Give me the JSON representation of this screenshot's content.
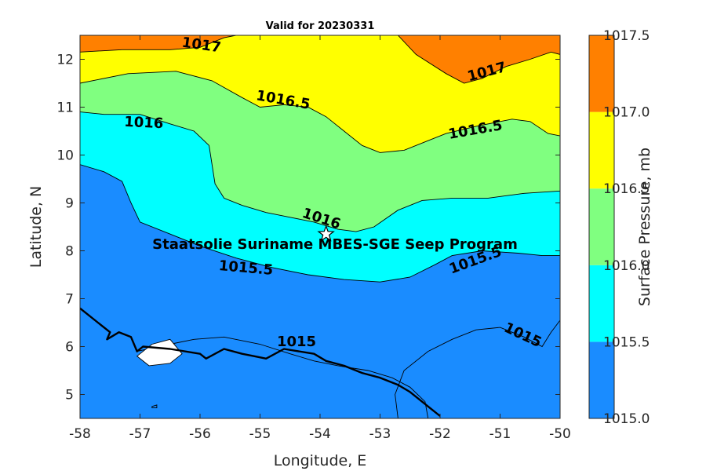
{
  "title": "Valid for 20230331",
  "xlabel": "Longitude, E",
  "ylabel": "Latitude, N",
  "colorbar": {
    "label": "Surface Pressure, mb",
    "range": [
      1015.0,
      1017.5
    ],
    "ticks": [
      "1015.0",
      "1015.5",
      "1016.0",
      "1016.5",
      "1017.0",
      "1017.5"
    ],
    "bands": [
      {
        "from": 1015.0,
        "to": 1015.5,
        "color": "#1a8cff"
      },
      {
        "from": 1015.5,
        "to": 1016.0,
        "color": "#00ffff"
      },
      {
        "from": 1016.0,
        "to": 1016.5,
        "color": "#80ff80"
      },
      {
        "from": 1016.5,
        "to": 1017.0,
        "color": "#ffff00"
      },
      {
        "from": 1017.0,
        "to": 1017.5,
        "color": "#ff8000"
      }
    ]
  },
  "annotation": "Staatsolie Suriname MBES-SGE Seep Program",
  "site_marker": {
    "lon": -53.9,
    "lat": 8.35,
    "shape": "star"
  },
  "chart_data": {
    "type": "heatmap",
    "xlim": [
      -58,
      -50
    ],
    "ylim": [
      4.5,
      12.5
    ],
    "xticks": [
      "-58",
      "-57",
      "-56",
      "-55",
      "-54",
      "-53",
      "-52",
      "-51",
      "-50"
    ],
    "yticks": [
      "5",
      "6",
      "7",
      "8",
      "9",
      "10",
      "11",
      "12"
    ],
    "contour_labels": [
      "1017",
      "1017",
      "1016.5",
      "1016.5",
      "1016",
      "1016",
      "1015.5",
      "1015.5",
      "1015",
      "1015"
    ],
    "contours": [
      {
        "level": 1017.0,
        "points": [
          [
            -58,
            12.15
          ],
          [
            -57.3,
            12.2
          ],
          [
            -56.5,
            12.2
          ],
          [
            -56,
            12.25
          ],
          [
            -55.6,
            12.45
          ],
          [
            -55.4,
            12.5
          ]
        ],
        "closed": false
      },
      {
        "level": 1017.0,
        "points": [
          [
            -52.7,
            12.5
          ],
          [
            -52.4,
            12.1
          ],
          [
            -51.9,
            11.7
          ],
          [
            -51.6,
            11.5
          ],
          [
            -51.3,
            11.6
          ],
          [
            -50.9,
            11.85
          ],
          [
            -50.5,
            12.0
          ],
          [
            -50.15,
            12.15
          ],
          [
            -50,
            12.1
          ]
        ],
        "closed": false
      },
      {
        "level": 1016.5,
        "points": [
          [
            -58,
            11.5
          ],
          [
            -57.2,
            11.7
          ],
          [
            -56.4,
            11.75
          ],
          [
            -55.8,
            11.55
          ],
          [
            -55.3,
            11.2
          ],
          [
            -55,
            11.0
          ],
          [
            -54.6,
            11.05
          ],
          [
            -54.2,
            11.0
          ],
          [
            -53.9,
            10.8
          ],
          [
            -53.6,
            10.5
          ],
          [
            -53.3,
            10.2
          ],
          [
            -53,
            10.05
          ],
          [
            -52.6,
            10.1
          ],
          [
            -52.2,
            10.3
          ],
          [
            -51.9,
            10.45
          ],
          [
            -51.4,
            10.6
          ],
          [
            -50.8,
            10.75
          ],
          [
            -50.5,
            10.7
          ],
          [
            -50.2,
            10.45
          ],
          [
            -50,
            10.4
          ]
        ],
        "closed": false
      },
      {
        "level": 1016.0,
        "points": [
          [
            -58,
            10.9
          ],
          [
            -57.6,
            10.85
          ],
          [
            -57,
            10.85
          ],
          [
            -56.5,
            10.65
          ],
          [
            -56.1,
            10.5
          ],
          [
            -55.85,
            10.2
          ],
          [
            -55.8,
            9.8
          ],
          [
            -55.75,
            9.4
          ],
          [
            -55.6,
            9.1
          ],
          [
            -55.3,
            8.95
          ],
          [
            -54.9,
            8.8
          ],
          [
            -54.5,
            8.7
          ],
          [
            -54.1,
            8.6
          ],
          [
            -53.7,
            8.45
          ],
          [
            -53.4,
            8.4
          ],
          [
            -53.1,
            8.5
          ],
          [
            -52.7,
            8.85
          ],
          [
            -52.3,
            9.05
          ],
          [
            -51.8,
            9.1
          ],
          [
            -51.2,
            9.1
          ],
          [
            -50.6,
            9.2
          ],
          [
            -50,
            9.25
          ]
        ],
        "closed": false
      },
      {
        "level": 1015.5,
        "points": [
          [
            -58,
            9.8
          ],
          [
            -57.6,
            9.65
          ],
          [
            -57.3,
            9.45
          ],
          [
            -57.15,
            9.0
          ],
          [
            -57.0,
            8.6
          ],
          [
            -56.6,
            8.4
          ],
          [
            -56,
            8.1
          ],
          [
            -55.4,
            7.85
          ],
          [
            -54.8,
            7.65
          ],
          [
            -54.2,
            7.5
          ],
          [
            -53.6,
            7.4
          ],
          [
            -53,
            7.35
          ],
          [
            -52.5,
            7.45
          ],
          [
            -52.1,
            7.7
          ],
          [
            -51.8,
            7.9
          ],
          [
            -51.3,
            8.0
          ],
          [
            -50.7,
            7.95
          ],
          [
            -50.3,
            7.9
          ],
          [
            -50,
            7.9
          ]
        ],
        "closed": false
      },
      {
        "level": 1015.0,
        "points": [
          [
            -57.05,
            5.9
          ],
          [
            -56.5,
            6.05
          ],
          [
            -56.1,
            6.15
          ],
          [
            -55.6,
            6.2
          ],
          [
            -55,
            6.05
          ],
          [
            -54.5,
            5.85
          ],
          [
            -54.1,
            5.7
          ],
          [
            -53.7,
            5.6
          ],
          [
            -53.2,
            5.5
          ],
          [
            -52.8,
            5.35
          ],
          [
            -52.5,
            5.15
          ],
          [
            -52.25,
            4.85
          ],
          [
            -52.2,
            4.5
          ]
        ],
        "closed": false
      },
      {
        "level": 1015.0,
        "points": [
          [
            -52.7,
            4.5
          ],
          [
            -52.75,
            5.0
          ],
          [
            -52.6,
            5.5
          ],
          [
            -52.2,
            5.9
          ],
          [
            -51.8,
            6.15
          ],
          [
            -51.4,
            6.35
          ],
          [
            -51.0,
            6.4
          ],
          [
            -50.6,
            6.2
          ],
          [
            -50.3,
            6.0
          ],
          [
            -50.15,
            6.3
          ],
          [
            -50,
            6.55
          ]
        ],
        "closed": false
      },
      {
        "level": 1015.0,
        "points": [
          [
            -56.8,
            6.05
          ],
          [
            -56.5,
            6.15
          ],
          [
            -56.3,
            5.85
          ],
          [
            -56.5,
            5.65
          ],
          [
            -56.85,
            5.6
          ],
          [
            -57.05,
            5.8
          ]
        ],
        "closed": true
      },
      {
        "level": 1015.0,
        "points": [
          [
            -56.8,
            4.75
          ],
          [
            -56.72,
            4.78
          ],
          [
            -56.72,
            4.72
          ],
          [
            -56.8,
            4.72
          ]
        ],
        "closed": true
      }
    ],
    "coastline": [
      [
        -58,
        6.8
      ],
      [
        -57.7,
        6.5
      ],
      [
        -57.5,
        6.3
      ],
      [
        -57.55,
        6.15
      ],
      [
        -57.35,
        6.3
      ],
      [
        -57.15,
        6.2
      ],
      [
        -57.05,
        5.9
      ],
      [
        -56.95,
        6.0
      ],
      [
        -56.5,
        5.95
      ],
      [
        -56.0,
        5.85
      ],
      [
        -55.9,
        5.75
      ],
      [
        -55.6,
        5.95
      ],
      [
        -55.3,
        5.85
      ],
      [
        -55.1,
        5.8
      ],
      [
        -54.9,
        5.75
      ],
      [
        -54.6,
        5.95
      ],
      [
        -54.1,
        5.85
      ],
      [
        -53.9,
        5.7
      ],
      [
        -53.6,
        5.6
      ],
      [
        -53.3,
        5.45
      ],
      [
        -53,
        5.35
      ],
      [
        -52.7,
        5.2
      ],
      [
        -52.5,
        5.05
      ],
      [
        -52.3,
        4.85
      ],
      [
        -52.15,
        4.7
      ],
      [
        -52,
        4.55
      ]
    ]
  }
}
